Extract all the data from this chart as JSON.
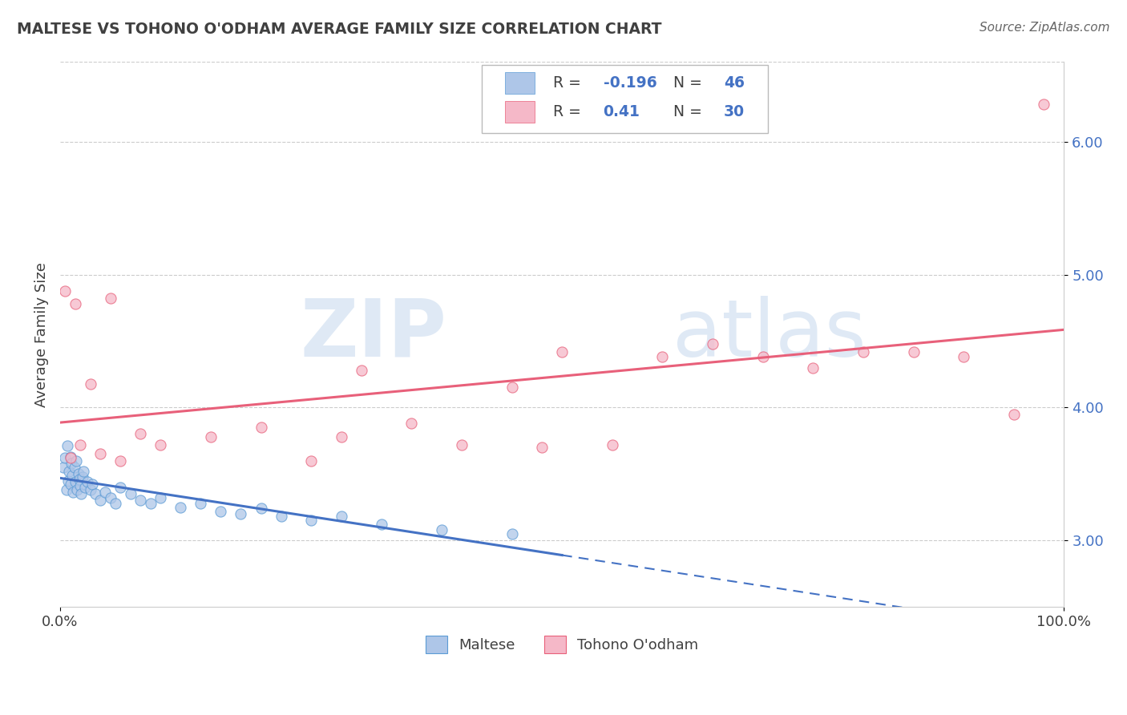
{
  "title": "MALTESE VS TOHONO O'ODHAM AVERAGE FAMILY SIZE CORRELATION CHART",
  "source": "Source: ZipAtlas.com",
  "ylabel": "Average Family Size",
  "maltese_color": "#aec6e8",
  "tohono_color": "#f5b8c8",
  "maltese_edge_color": "#5b9bd5",
  "tohono_edge_color": "#e8607a",
  "maltese_line_color": "#4472c4",
  "tohono_line_color": "#e8607a",
  "R_maltese": -0.196,
  "N_maltese": 46,
  "R_tohono": 0.41,
  "N_tohono": 30,
  "maltese_x": [
    0.3,
    0.5,
    0.6,
    0.7,
    0.8,
    0.9,
    1.0,
    1.0,
    1.1,
    1.2,
    1.3,
    1.4,
    1.5,
    1.6,
    1.7,
    1.8,
    1.9,
    2.0,
    2.1,
    2.2,
    2.3,
    2.5,
    2.7,
    3.0,
    3.2,
    3.5,
    4.0,
    4.5,
    5.0,
    5.5,
    6.0,
    7.0,
    8.0,
    9.0,
    10.0,
    12.0,
    14.0,
    16.0,
    18.0,
    20.0,
    22.0,
    25.0,
    28.0,
    32.0,
    38.0,
    45.0
  ],
  "maltese_y": [
    3.55,
    3.62,
    3.38,
    3.71,
    3.45,
    3.52,
    3.63,
    3.42,
    3.58,
    3.49,
    3.36,
    3.55,
    3.44,
    3.6,
    3.38,
    3.5,
    3.46,
    3.41,
    3.35,
    3.48,
    3.52,
    3.4,
    3.44,
    3.38,
    3.42,
    3.35,
    3.3,
    3.36,
    3.32,
    3.28,
    3.4,
    3.35,
    3.3,
    3.28,
    3.32,
    3.25,
    3.28,
    3.22,
    3.2,
    3.24,
    3.18,
    3.15,
    3.18,
    3.12,
    3.08,
    3.05
  ],
  "tohono_x": [
    0.5,
    1.0,
    1.5,
    2.0,
    3.0,
    4.0,
    5.0,
    6.0,
    8.0,
    10.0,
    15.0,
    20.0,
    25.0,
    28.0,
    30.0,
    35.0,
    40.0,
    45.0,
    48.0,
    50.0,
    55.0,
    60.0,
    65.0,
    70.0,
    75.0,
    80.0,
    85.0,
    90.0,
    95.0,
    98.0
  ],
  "tohono_y": [
    4.88,
    3.62,
    4.78,
    3.72,
    4.18,
    3.65,
    4.82,
    3.6,
    3.8,
    3.72,
    3.78,
    3.85,
    3.6,
    3.78,
    4.28,
    3.88,
    3.72,
    4.15,
    3.7,
    4.42,
    3.72,
    4.38,
    4.48,
    4.38,
    4.3,
    4.42,
    4.42,
    4.38,
    3.95,
    6.28
  ],
  "xlim": [
    0,
    100
  ],
  "ylim": [
    2.5,
    6.6
  ],
  "yticks": [
    3.0,
    4.0,
    5.0,
    6.0
  ],
  "xticklabels": [
    "0.0%",
    "100.0%"
  ],
  "yticklabels": [
    "3.00",
    "4.00",
    "5.00",
    "6.00"
  ],
  "watermark_zip": "ZIP",
  "watermark_atlas": "atlas",
  "legend_maltese_label": "Maltese",
  "legend_tohono_label": "Tohono O'odham",
  "bg_color": "#ffffff",
  "grid_color": "#cccccc",
  "label_color": "#4472c4",
  "text_color": "#404040",
  "maltese_solid_end": 50,
  "tohono_line_start": 0,
  "tohono_line_end": 100
}
